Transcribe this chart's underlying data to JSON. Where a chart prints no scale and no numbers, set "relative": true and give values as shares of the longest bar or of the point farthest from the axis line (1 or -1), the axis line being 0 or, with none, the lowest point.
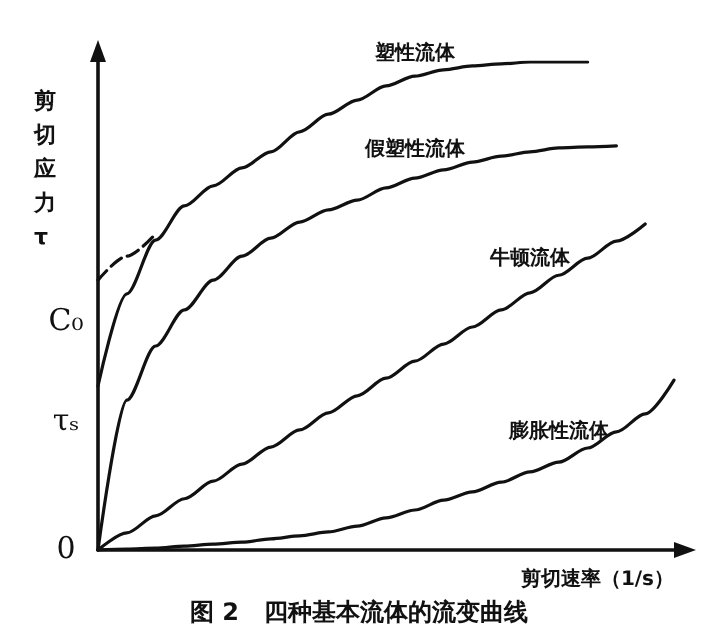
{
  "chart_data": {
    "type": "line",
    "relative": true,
    "title": "图 2   四种基本流体的流变曲线",
    "xlabel": "剪切速率（1/s）",
    "ylabel": "剪切应力τ",
    "marker": "none",
    "line_style": "solid",
    "grid": false,
    "categories": [
      null,
      null,
      null,
      null,
      null,
      null,
      null,
      null,
      null,
      null,
      null,
      null,
      null,
      null,
      null,
      null,
      null,
      null,
      null,
      null,
      null
    ],
    "annotations": [
      "C₀",
      "τₛ",
      "0"
    ],
    "series": [
      {
        "name": "塑性流体",
        "color": "#111111",
        "values": [
          0.336,
          0.525,
          0.635,
          0.705,
          0.746,
          0.783,
          0.816,
          0.857,
          0.893,
          0.922,
          0.951,
          0.971,
          0.984,
          0.992,
          0.996,
          1,
          1,
          1,
          null,
          null,
          null
        ]
      },
      {
        "name": "假塑性流体",
        "color": "#111111",
        "values": [
          0,
          0.307,
          0.418,
          0.492,
          0.553,
          0.602,
          0.639,
          0.672,
          0.697,
          0.717,
          0.742,
          0.762,
          0.779,
          0.795,
          0.807,
          0.816,
          0.824,
          0.826,
          0.828,
          null,
          null
        ]
      },
      {
        "name": "牛顿流体",
        "color": "#111111",
        "values": [
          0,
          0.035,
          0.07,
          0.105,
          0.141,
          0.176,
          0.211,
          0.246,
          0.281,
          0.316,
          0.352,
          0.387,
          0.422,
          0.457,
          0.492,
          0.527,
          0.563,
          0.598,
          0.633,
          0.668,
          null
        ]
      },
      {
        "name": "膨胀性流体",
        "color": "#111111",
        "values": [
          0,
          0.002,
          0.004,
          0.008,
          0.012,
          0.016,
          0.023,
          0.029,
          0.037,
          0.049,
          0.066,
          0.082,
          0.102,
          0.119,
          0.139,
          0.16,
          0.18,
          0.209,
          0.242,
          0.279,
          0.348
        ]
      },
      {
        "color": "#111111",
        "line_style": "dashed",
        "values": [
          0.553,
          0.602,
          0.648,
          null,
          null,
          null,
          null,
          null,
          null,
          null,
          null,
          null,
          null,
          null,
          null,
          null,
          null,
          null,
          null,
          null,
          null
        ]
      }
    ]
  }
}
